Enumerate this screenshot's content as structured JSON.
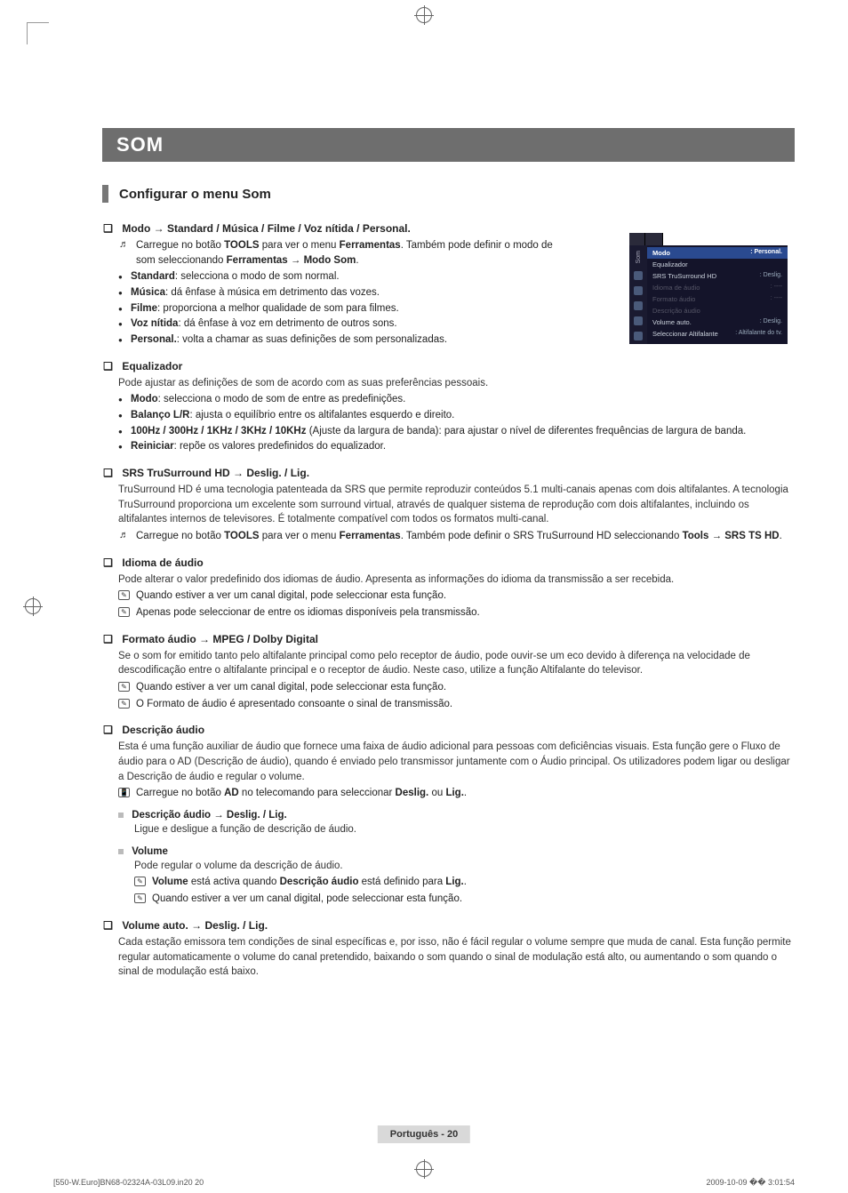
{
  "chapter_title": "SOM",
  "section_title": "Configurar o menu Som",
  "modo": {
    "heading": "Modo → Standard / Música / Filme / Voz nítida / Personal.",
    "tool_pre": "Carregue no botão ",
    "tool_bold1": "TOOLS",
    "tool_mid": " para ver o menu ",
    "tool_bold2": "Ferramentas",
    "tool_tail": ". Também pode definir o modo de som seleccionando ",
    "tool_bold3": "Ferramentas → Modo Som",
    "tool_end": ".",
    "items": [
      {
        "label": "Standard",
        "text": ": selecciona o modo de som normal."
      },
      {
        "label": "Música",
        "text": ": dá ênfase à música em detrimento das vozes."
      },
      {
        "label": "Filme",
        "text": ": proporciona a melhor qualidade de som para filmes."
      },
      {
        "label": "Voz nítida",
        "text": ": dá ênfase à voz em detrimento de outros sons."
      },
      {
        "label": "Personal.",
        "text": ": volta a chamar as suas definições de som personalizadas."
      }
    ]
  },
  "equalizador": {
    "heading": "Equalizador",
    "lead": "Pode ajustar as definições de som de acordo com as suas preferências pessoais.",
    "items": [
      {
        "label": "Modo",
        "text": ": selecciona o modo de som de entre as predefinições."
      },
      {
        "label": "Balanço L/R",
        "text": ": ajusta o equilíbrio entre os altifalantes esquerdo e direito."
      },
      {
        "label": "100Hz / 300Hz / 1KHz / 3KHz / 10KHz",
        "text": " (Ajuste da largura de banda): para ajustar o nível de diferentes frequências de largura de banda."
      },
      {
        "label": "Reiniciar",
        "text": ": repõe os valores predefinidos do equalizador."
      }
    ]
  },
  "srs": {
    "heading": "SRS TruSurround HD → Deslig. / Lig.",
    "body": "TruSurround HD é uma tecnologia patenteada da SRS que permite reproduzir conteúdos 5.1 multi-canais apenas com dois altifalantes. A tecnologia TruSurround proporciona um excelente som surround virtual, através de qualquer sistema de reprodução com dois altifalantes, incluindo os altifalantes internos de televisores. É totalmente compatível com todos os formatos multi-canal.",
    "tool_pre": "Carregue no botão ",
    "tool_bold1": "TOOLS",
    "tool_mid": " para ver o menu ",
    "tool_bold2": "Ferramentas",
    "tool_tail": ". Também pode definir o SRS TruSurround HD seleccionando ",
    "tool_bold3": "Tools → SRS TS HD",
    "tool_end": "."
  },
  "idioma": {
    "heading": "Idioma de áudio",
    "body": "Pode alterar o valor predefinido dos idiomas de áudio. Apresenta as informações do idioma da transmissão a ser recebida.",
    "note1": "Quando estiver a ver um canal digital, pode seleccionar esta função.",
    "note2": "Apenas pode seleccionar de entre os idiomas disponíveis pela transmissão."
  },
  "formato": {
    "heading": "Formato áudio → MPEG / Dolby Digital",
    "body": "Se o som for emitido tanto pelo altifalante principal como pelo receptor de áudio, pode ouvir-se um eco devido à diferença na velocidade de descodificação entre o altifalante principal e o receptor de áudio. Neste caso, utilize a função Altifalante do televisor.",
    "note1": "Quando estiver a ver um canal digital, pode seleccionar esta função.",
    "note2": "O Formato de áudio é apresentado consoante o sinal de transmissão."
  },
  "descricao": {
    "heading": "Descrição áudio",
    "body": "Esta é uma função auxiliar de áudio que fornece uma faixa de áudio adicional para pessoas com deficiências visuais. Esta função gere o Fluxo de áudio para o AD (Descrição de áudio), quando é enviado pelo transmissor juntamente com o Áudio principal. Os utilizadores podem ligar ou desligar a Descrição de áudio e regular o volume.",
    "remote_pre": "Carregue no botão ",
    "remote_bold": "AD",
    "remote_mid": " no telecomando para seleccionar ",
    "remote_b2": "Deslig.",
    "remote_or": " ou ",
    "remote_b3": "Lig.",
    "remote_end": ".",
    "sub1_heading": "Descrição áudio → Deslig. / Lig.",
    "sub1_body": "Ligue e desligue a função de descrição de áudio.",
    "sub2_heading": "Volume",
    "sub2_body": "Pode regular o volume da descrição de áudio.",
    "sub2_note1_pre": "",
    "sub2_note1_b1": "Volume",
    "sub2_note1_mid": " está activa quando ",
    "sub2_note1_b2": "Descrição áudio",
    "sub2_note1_mid2": " está definido para ",
    "sub2_note1_b3": "Lig.",
    "sub2_note1_end": ".",
    "sub2_note2": "Quando estiver a ver um canal digital, pode seleccionar esta função."
  },
  "volumeauto": {
    "heading": "Volume auto. → Deslig. / Lig.",
    "body": "Cada estação emissora tem condições de sinal específicas e, por isso, não é fácil regular o volume sempre que muda de canal. Esta função permite regular automaticamente o volume do canal pretendido, baixando o som quando o sinal de modulação está alto, ou aumentando o som quando o sinal de modulação está baixo."
  },
  "osd": {
    "side_label": "Som",
    "rows": [
      {
        "k": "Modo",
        "v": ": Personal.",
        "cls": "sel"
      },
      {
        "k": "Equalizador",
        "v": "",
        "cls": ""
      },
      {
        "k": "SRS TruSurround HD",
        "v": ": Deslig.",
        "cls": ""
      },
      {
        "k": "Idioma de áudio",
        "v": ": ----",
        "cls": "dim"
      },
      {
        "k": "Formato áudio",
        "v": ": ----",
        "cls": "dim"
      },
      {
        "k": "Descrição áudio",
        "v": "",
        "cls": "dim"
      },
      {
        "k": "Volume auto.",
        "v": ": Deslig.",
        "cls": ""
      },
      {
        "k": "Seleccionar Altifalante",
        "v": ": Altifalante do tv.",
        "cls": ""
      }
    ]
  },
  "page_label": "Português - 20",
  "footer_left": "[550-W.Euro]BN68-02324A-03L09.in20   20",
  "footer_right": "2009-10-09   �� 3:01:54"
}
